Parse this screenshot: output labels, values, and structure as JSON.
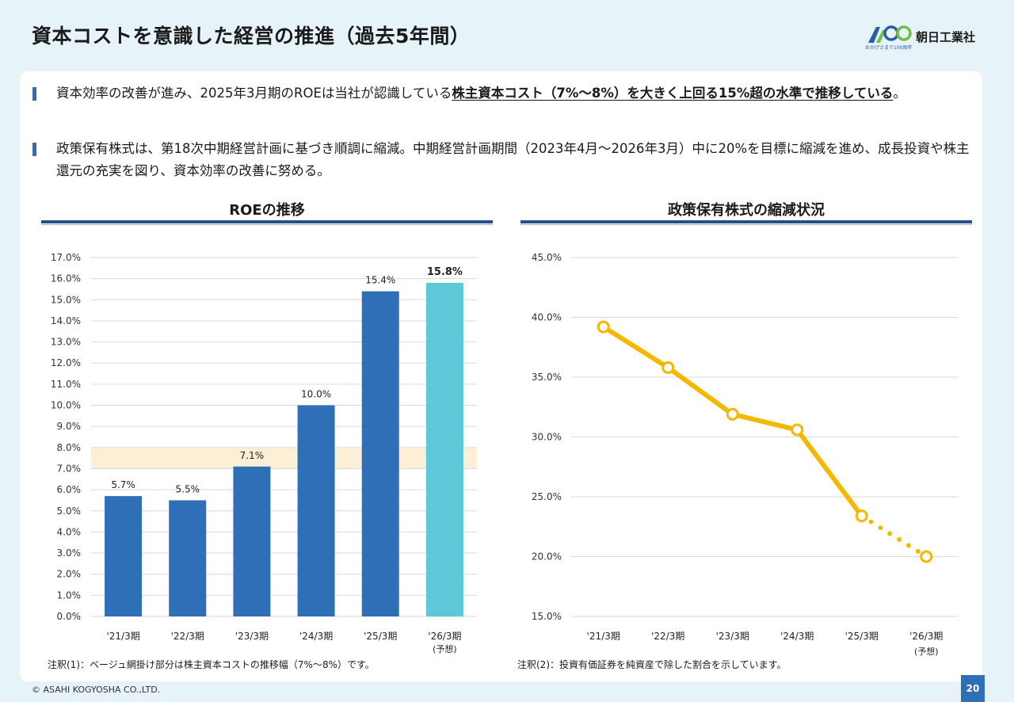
{
  "page": {
    "title": "資本コストを意識した経営の推進（過去5年間）",
    "logo_text": "朝日工業社",
    "logo_tagline": "おかげさまで100周年",
    "copyright": "© ASAHI KOGYOSHA CO.,LTD.",
    "page_number": "20"
  },
  "bullets": [
    {
      "pre": "資本効率の改善が進み、2025年3月期のROEは当社が認識している",
      "highlight": "株主資本コスト（7%～8%）を大きく上回る15%超の水準で推移している",
      "post": "。"
    },
    {
      "pre": "政策保有株式は、第18次中期経営計画に基づき順調に縮減。中期経営計画期間（2023年4月～2026年3月）中に20%を目標に縮減を進め、成長投資や株主還元の充実を図り、資本効率の改善に努める。",
      "highlight": "",
      "post": ""
    }
  ],
  "colors": {
    "bar": "#2f6fb8",
    "bar_forecast": "#5cc8d8",
    "cost_band": "#fdefd6",
    "line": "#f5b800",
    "accent_rule": "#254f8f"
  },
  "chart_data": [
    {
      "type": "bar",
      "title": "ROEの推移",
      "categories": [
        "'21/3期",
        "'22/3期",
        "'23/3期",
        "'24/3期",
        "'25/3期",
        "'26/3期"
      ],
      "category_sublabels": [
        "",
        "",
        "",
        "",
        "",
        "(予想)"
      ],
      "values": [
        5.7,
        5.5,
        7.1,
        10.0,
        15.4,
        15.8
      ],
      "data_labels": [
        "5.7%",
        "5.5%",
        "7.1%",
        "10.0%",
        "15.4%",
        "15.8%"
      ],
      "forecast_index": 5,
      "band": [
        7.0,
        8.0
      ],
      "ylim": [
        0,
        17
      ],
      "ytick_step": 1,
      "ytick_labels": [
        "0.0%",
        "1.0%",
        "2.0%",
        "3.0%",
        "4.0%",
        "5.0%",
        "6.0%",
        "7.0%",
        "8.0%",
        "9.0%",
        "10.0%",
        "11.0%",
        "12.0%",
        "13.0%",
        "14.0%",
        "15.0%",
        "16.0%",
        "17.0%"
      ],
      "grid": true,
      "note": "注釈(1)：ベージュ網掛け部分は株主資本コストの推移幅（7%～8%）です。"
    },
    {
      "type": "line",
      "title": "政策保有株式の縮減状況",
      "categories": [
        "'21/3期",
        "'22/3期",
        "'23/3期",
        "'24/3期",
        "'25/3期",
        "'26/3期"
      ],
      "category_sublabels": [
        "",
        "",
        "",
        "",
        "",
        "(予想)"
      ],
      "values": [
        39.2,
        35.8,
        31.9,
        30.6,
        23.4,
        20.0
      ],
      "forecast_index": 5,
      "ylim": [
        15,
        45
      ],
      "ytick_step": 5,
      "ytick_labels": [
        "15.0%",
        "20.0%",
        "25.0%",
        "30.0%",
        "35.0%",
        "40.0%",
        "45.0%"
      ],
      "grid": true,
      "note": "注釈(2)：投資有価証券を純資産で除した割合を示しています。"
    }
  ]
}
